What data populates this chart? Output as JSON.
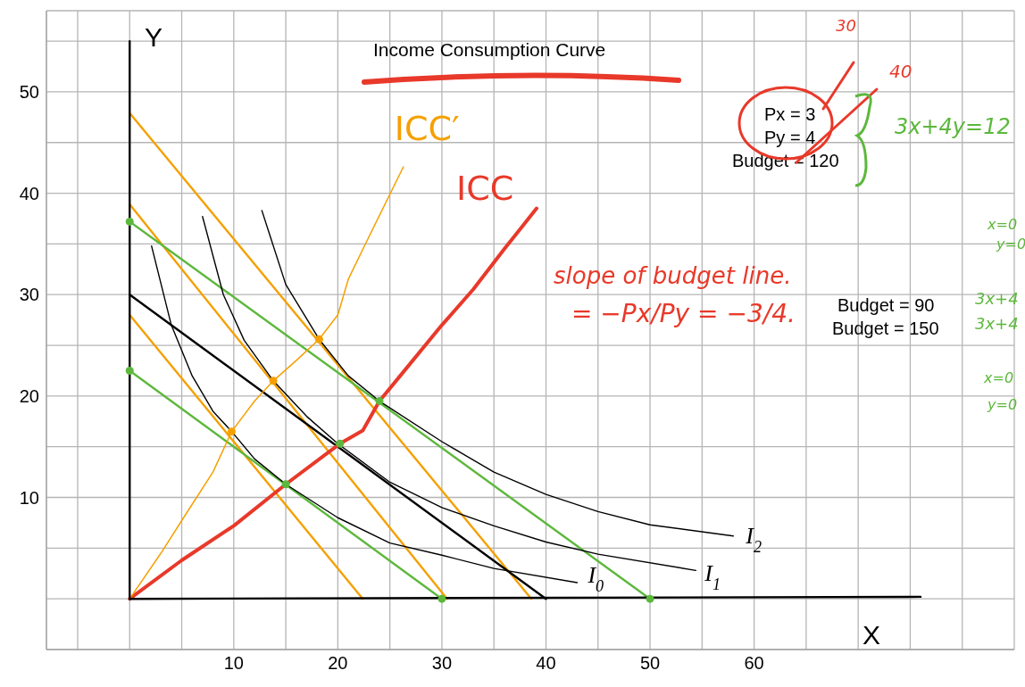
{
  "chart_data": {
    "type": "line",
    "title": "Income Consumption Curve",
    "xlabel": "X",
    "ylabel": "Y",
    "xlim": [
      -8,
      85
    ],
    "ylim": [
      -5,
      58
    ],
    "xticks": [
      {
        "value": -5,
        "label": null
      },
      {
        "value": 0,
        "label": null
      },
      {
        "value": 5,
        "label": null
      },
      10,
      {
        "value": 15,
        "label": null
      },
      20,
      {
        "value": 25,
        "label": null
      },
      30,
      {
        "value": 35,
        "label": null
      },
      40,
      {
        "value": 45,
        "label": null
      },
      50,
      {
        "value": 55,
        "label": null
      },
      60,
      {
        "value": 65,
        "label": null
      },
      {
        "value": 70,
        "label": null
      },
      {
        "value": 75,
        "label": null
      },
      {
        "value": 80,
        "label": null
      }
    ],
    "yticks": [
      {
        "value": 0,
        "label": null
      },
      {
        "value": 5,
        "label": null
      },
      10,
      {
        "value": 15,
        "label": null
      },
      20,
      {
        "value": 25,
        "label": null
      },
      30,
      {
        "value": 35,
        "label": null
      },
      40,
      {
        "value": 45,
        "label": null
      },
      50,
      {
        "value": 55,
        "label": null
      }
    ],
    "grid": true,
    "annotations": [
      "Px = 3",
      "Py = 4",
      "Budget = 120",
      "30",
      "40",
      "3x+4y=12",
      "slope of budget line.",
      "= −Px/Py = −3/4.",
      "Budget = 90",
      "Budget = 150",
      "x=0",
      "y=0",
      "3x+4",
      "3x+4",
      "x=0",
      "y=0"
    ],
    "series": [
      {
        "color": "#f5a000",
        "x": [
          0,
          22.4
        ],
        "values": [
          28,
          0
        ]
      },
      {
        "color": "#f5a000",
        "x": [
          0,
          30.5
        ],
        "values": [
          38.9,
          0
        ]
      },
      {
        "color": "#f5a000",
        "x": [
          0,
          38.6
        ],
        "values": [
          47.9,
          0
        ]
      },
      {
        "color": "#5cb83c",
        "x": [
          0,
          30
        ],
        "values": [
          22.5,
          0
        ]
      },
      {
        "color": "#5cb83c",
        "x": [
          0,
          50
        ],
        "values": [
          37.2,
          0
        ]
      },
      {
        "color": "#000000",
        "x": [
          0,
          40
        ],
        "values": [
          30,
          0
        ]
      },
      {
        "name": "I$_{0}$",
        "color": "#000000",
        "x": [
          2.1,
          4,
          6,
          8,
          9.8,
          12,
          15,
          20,
          25,
          30,
          35,
          43
        ],
        "values": [
          34.8,
          27,
          22,
          18.5,
          16.5,
          13.8,
          11.3,
          8,
          5.5,
          4.3,
          3,
          1.6
        ]
      },
      {
        "name": "I$_{1}$",
        "color": "#000000",
        "x": [
          7,
          9,
          11,
          13.8,
          17,
          20,
          25,
          30,
          35,
          40,
          45,
          54.4
        ],
        "values": [
          37.7,
          30,
          25.5,
          21.5,
          18,
          15.3,
          11.5,
          9,
          7.2,
          5.6,
          4.4,
          2.8
        ]
      },
      {
        "name": "I$_{2}$",
        "color": "#000000",
        "x": [
          12.7,
          15,
          18.2,
          21,
          24,
          30,
          35,
          40,
          45,
          50,
          58
        ],
        "values": [
          38.3,
          31,
          25.6,
          22,
          19.5,
          15.5,
          12.5,
          10.3,
          8.6,
          7.3,
          6.2
        ]
      },
      {
        "name": "ICC",
        "color": "#e8392a",
        "x": [
          0,
          5,
          10,
          15,
          20.2,
          22.4,
          24,
          26,
          30,
          33,
          36,
          39.1
        ],
        "values": [
          0,
          3.8,
          7.2,
          11.3,
          15.3,
          16.6,
          19.5,
          22,
          27,
          30.5,
          34.5,
          38.5
        ]
      },
      {
        "name": "ICC′",
        "color": "#f5a000",
        "x": [
          0,
          3,
          5.3,
          8,
          9.8,
          12,
          13.8,
          16,
          18.2,
          20,
          21,
          22.7,
          26.3
        ],
        "values": [
          0,
          4.5,
          8.2,
          12.5,
          16.5,
          19.5,
          21.5,
          23.5,
          25.6,
          28,
          31.5,
          35.1,
          42.6
        ]
      },
      {
        "type": "scatter",
        "color": "#5cb83c",
        "x": [
          0,
          0,
          30,
          50,
          15,
          20.2,
          24
        ],
        "values": [
          37.2,
          22.5,
          0,
          0,
          11.3,
          15.3,
          19.5
        ]
      },
      {
        "type": "scatter",
        "color": "#f5a000",
        "x": [
          9.8,
          13.8,
          18.2
        ],
        "values": [
          16.5,
          21.5,
          25.6
        ]
      },
      {
        "color": "#000000",
        "x": [
          0,
          0
        ],
        "values": [
          0,
          55
        ]
      },
      {
        "color": "#000000",
        "x": [
          0,
          76
        ],
        "values": [
          0,
          0.2
        ]
      }
    ]
  }
}
